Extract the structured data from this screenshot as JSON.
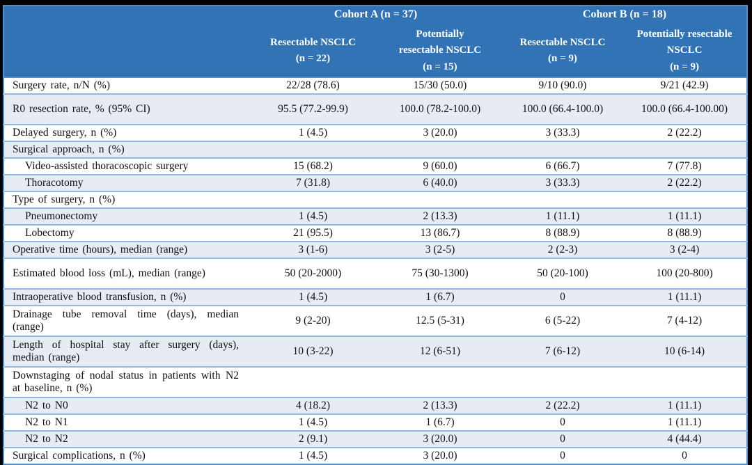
{
  "table": {
    "header": {
      "cohorts": [
        {
          "label": "Cohort A (n = 37)"
        },
        {
          "label": "Cohort B (n = 18)"
        }
      ],
      "subgroups": [
        {
          "lines": [
            "Resectable NSCLC",
            "(n = 22)"
          ]
        },
        {
          "lines": [
            "Potentially",
            "resectable NSCLC",
            "(n = 15)"
          ]
        },
        {
          "lines": [
            "Resectable NSCLC",
            "(n = 9)"
          ]
        },
        {
          "lines": [
            "Potentially resectable",
            "NSCLC",
            "(n = 9)"
          ]
        }
      ]
    },
    "rows": [
      {
        "label": "Surgery rate, n/N (%)",
        "values": [
          "22/28 (78.6)",
          "15/30 (50.0)",
          "9/10 (90.0)",
          "9/21 (42.9)"
        ]
      },
      {
        "label": "R0 resection rate, % (95% CI)",
        "values": [
          "95.5 (77.2-99.9)",
          "100.0 (78.2-100.0)",
          "100.0 (66.4-100.0)",
          "100.0 (66.4-100.00)"
        ]
      },
      {
        "label": "Delayed surgery, n (%)",
        "values": [
          "1 (4.5)",
          "3 (20.0)",
          "3 (33.3)",
          "2 (22.2)"
        ]
      },
      {
        "label": "Surgical approach, n (%)",
        "values": [
          "",
          "",
          "",
          ""
        ]
      },
      {
        "label": "Video-assisted thoracoscopic surgery",
        "values": [
          "15 (68.2)",
          "9 (60.0)",
          "6 (66.7)",
          "7 (77.8)"
        ]
      },
      {
        "label": "Thoracotomy",
        "values": [
          "7 (31.8)",
          "6 (40.0)",
          "3 (33.3)",
          "2 (22.2)"
        ]
      },
      {
        "label": "Type of surgery, n (%)",
        "values": [
          "",
          "",
          "",
          ""
        ]
      },
      {
        "label": "Pneumonectomy",
        "values": [
          "1 (4.5)",
          "2 (13.3)",
          "1 (11.1)",
          "1 (11.1)"
        ]
      },
      {
        "label": "Lobectomy",
        "values": [
          "21 (95.5)",
          "13 (86.7)",
          "8 (88.9)",
          "8 (88.9)"
        ]
      },
      {
        "label": "Operative time (hours), median (range)",
        "values": [
          "3 (1-6)",
          "3 (2-5)",
          "2 (2-3)",
          "3 (2-4)"
        ]
      },
      {
        "label": "Estimated blood loss (mL), median (range)",
        "values": [
          "50 (20-2000)",
          "75 (30-1300)",
          "50 (20-100)",
          "100 (20-800)"
        ]
      },
      {
        "label": "Intraoperative blood transfusion, n (%)",
        "values": [
          "1 (4.5)",
          "1 (6.7)",
          "0",
          "1 (11.1)"
        ]
      },
      {
        "label": "Drainage tube removal time (days), median (range)",
        "values": [
          "9 (2-20)",
          "12.5 (5-31)",
          "6 (5-22)",
          "7 (4-12)"
        ]
      },
      {
        "label": "Length of hospital stay after surgery (days), median (range)",
        "values": [
          "10 (3-22)",
          "12 (6-51)",
          "7 (6-12)",
          "10 (6-14)"
        ]
      },
      {
        "label": "Downstaging of nodal status in patients with N2 at baseline, n (%)",
        "values": [
          "",
          "",
          "",
          ""
        ]
      },
      {
        "label": "N2 to N0",
        "values": [
          "4 (18.2)",
          "2 (13.3)",
          "2 (22.2)",
          "1 (11.1)"
        ]
      },
      {
        "label": "N2 to N1",
        "values": [
          "1 (4.5)",
          "1 (6.7)",
          "0",
          "1 (11.1)"
        ]
      },
      {
        "label": "N2 to N2",
        "values": [
          "2 (9.1)",
          "3 (20.0)",
          "0",
          "4 (44.4)"
        ]
      },
      {
        "label": "Surgical complications, n (%)",
        "values": [
          "1 (4.5)",
          "3 (20.0)",
          "0",
          "0"
        ]
      }
    ]
  },
  "colors": {
    "header_bg": "#3173B4",
    "header_text": "#FFFFFF",
    "stripe_bg": "#E6EBF4",
    "row_border": "#8FB9E4",
    "outer_border": "#4F8FCC",
    "frame": "#000000"
  }
}
